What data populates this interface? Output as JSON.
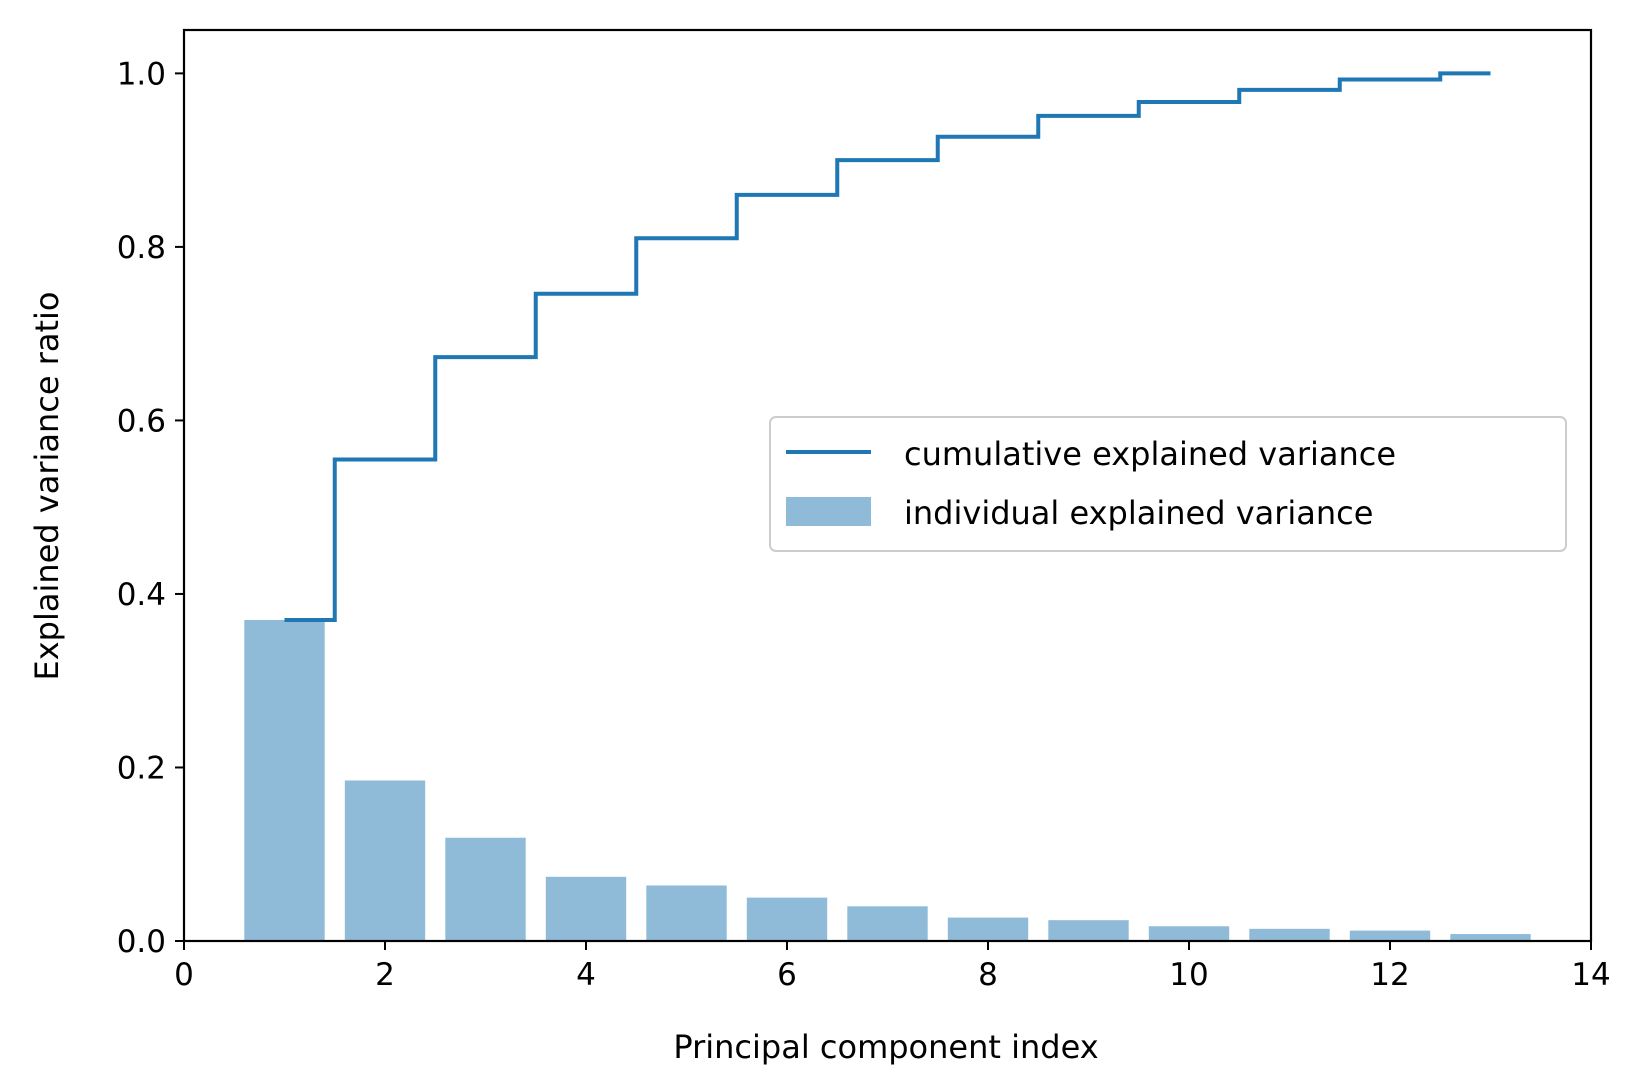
{
  "chart_data": {
    "type": "bar",
    "title": "",
    "xlabel": "Principal component index",
    "ylabel": "Explained variance ratio",
    "xlim": [
      0,
      14
    ],
    "ylim": [
      0,
      1.05
    ],
    "x_ticks": [
      0,
      2,
      4,
      6,
      8,
      10,
      12,
      14
    ],
    "x_tick_labels": [
      "0",
      "2",
      "4",
      "6",
      "8",
      "10",
      "12",
      "14"
    ],
    "y_ticks": [
      0.0,
      0.2,
      0.4,
      0.6,
      0.8,
      1.0
    ],
    "y_tick_labels": [
      "0.0",
      "0.2",
      "0.4",
      "0.6",
      "0.8",
      "1.0"
    ],
    "grid": false,
    "legend_position": "center-right",
    "categories": [
      1,
      2,
      3,
      4,
      5,
      6,
      7,
      8,
      9,
      10,
      11,
      12,
      13
    ],
    "series": [
      {
        "name": "cumulative explained variance",
        "type": "step",
        "color": "#1f77b4",
        "values": [
          0.37,
          0.555,
          0.673,
          0.746,
          0.81,
          0.86,
          0.9,
          0.927,
          0.951,
          0.967,
          0.981,
          0.993,
          1.0
        ]
      },
      {
        "name": "individual explained variance",
        "type": "bar",
        "color": "#1f77b4",
        "opacity": 0.5,
        "values": [
          0.37,
          0.185,
          0.119,
          0.074,
          0.064,
          0.05,
          0.04,
          0.027,
          0.024,
          0.017,
          0.014,
          0.012,
          0.008
        ]
      }
    ]
  }
}
